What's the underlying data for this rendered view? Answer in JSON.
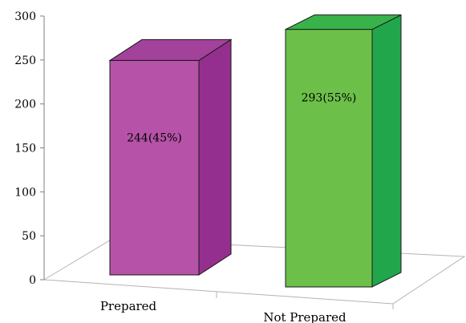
{
  "chart_data": {
    "type": "bar",
    "style": "3d-column",
    "categories": [
      "Prepared",
      "Not Prepared"
    ],
    "values": [
      244,
      293
    ],
    "data_labels": [
      "244(45%)",
      "293(55%)"
    ],
    "ylim": [
      0,
      300
    ],
    "yticks": [
      0,
      50,
      100,
      150,
      200,
      250,
      300
    ],
    "ytick_labels": [
      "0",
      "50",
      "100",
      "150",
      "200",
      "250",
      "300"
    ],
    "grid": false,
    "legend": "none",
    "colors": {
      "Prepared": {
        "front": "#b653a8",
        "side": "#952f8f",
        "top": "#a3429b"
      },
      "Not Prepared": {
        "front": "#6cc04a",
        "side": "#22a64c",
        "top": "#38b34a"
      }
    }
  }
}
